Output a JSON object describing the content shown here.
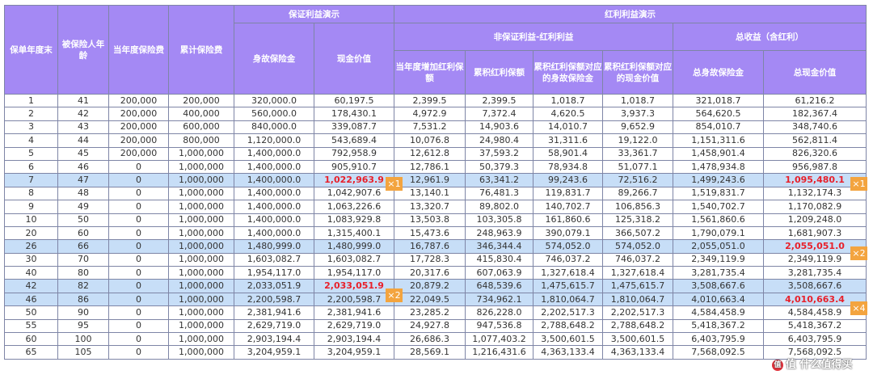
{
  "header": {
    "policy_year": "保单年度末",
    "insured_age": "被保险人年龄",
    "annual_premium": "当年度保险费",
    "cum_premium": "累计保险费",
    "guaranteed_group": "保证利益演示",
    "death_benefit": "身故保险金",
    "cash_value": "现金价值",
    "dividend_group": "红利利益演示",
    "nonguaranteed_group": "非保证利益-红利利益",
    "total_group": "总收益（含红利）",
    "bonus_added": "当年度增加红利保额",
    "cum_bonus": "累积红利保额",
    "bonus_death": "累积红利保额对应的身故保险金",
    "bonus_cash": "累积红利保额对应的现金价值",
    "total_death": "总身故保险金",
    "total_cash": "总现金价值"
  },
  "rows": [
    {
      "year": "1",
      "age": "41",
      "prem": "200,000",
      "cum": "200,000",
      "death": "320,000.0",
      "cash": "60,197.5",
      "badd": "2,399.5",
      "bcum": "2,399.5",
      "bdeath": "1,018.7",
      "bcash": "1,018.7",
      "tdeath": "321,018.7",
      "tcash": "61,216.2"
    },
    {
      "year": "2",
      "age": "42",
      "prem": "200,000",
      "cum": "400,000",
      "death": "560,000.0",
      "cash": "178,430.1",
      "badd": "4,972.9",
      "bcum": "7,372.4",
      "bdeath": "4,620.5",
      "bcash": "3,937.3",
      "tdeath": "564,620.5",
      "tcash": "182,367.4"
    },
    {
      "year": "3",
      "age": "43",
      "prem": "200,000",
      "cum": "600,000",
      "death": "840,000.0",
      "cash": "339,087.7",
      "badd": "7,531.2",
      "bcum": "14,903.6",
      "bdeath": "14,010.7",
      "bcash": "9,652.9",
      "tdeath": "854,010.7",
      "tcash": "348,740.6"
    },
    {
      "year": "4",
      "age": "44",
      "prem": "200,000",
      "cum": "800,000",
      "death": "1,120,000.0",
      "cash": "543,689.4",
      "badd": "10,076.8",
      "bcum": "24,980.4",
      "bdeath": "31,311.6",
      "bcash": "19,122.0",
      "tdeath": "1,151,311.6",
      "tcash": "562,811.4"
    },
    {
      "year": "5",
      "age": "45",
      "prem": "200,000",
      "cum": "1,000,000",
      "death": "1,400,000.0",
      "cash": "792,958.9",
      "badd": "12,612.8",
      "bcum": "37,593.2",
      "bdeath": "58,901.4",
      "bcash": "33,361.7",
      "tdeath": "1,458,901.4",
      "tcash": "826,320.6"
    },
    {
      "year": "6",
      "age": "46",
      "prem": "0",
      "cum": "1,000,000",
      "death": "1,400,000.0",
      "cash": "905,910.7",
      "badd": "12,786.1",
      "bcum": "50,379.3",
      "bdeath": "78,934.8",
      "bcash": "51,077.1",
      "tdeath": "1,478,934.8",
      "tcash": "956,987.8"
    },
    {
      "year": "7",
      "age": "47",
      "prem": "0",
      "cum": "1,000,000",
      "death": "1,400,000.0",
      "cash": "1,022,963.9",
      "badd": "12,961.9",
      "bcum": "63,341.2",
      "bdeath": "99,243.6",
      "bcash": "72,516.2",
      "tdeath": "1,499,243.6",
      "tcash": "1,095,480.1"
    },
    {
      "year": "8",
      "age": "48",
      "prem": "0",
      "cum": "1,000,000",
      "death": "1,400,000.0",
      "cash": "1,042,907.6",
      "badd": "13,140.1",
      "bcum": "76,481.3",
      "bdeath": "119,831.7",
      "bcash": "89,266.7",
      "tdeath": "1,519,831.7",
      "tcash": "1,132,174.3"
    },
    {
      "year": "9",
      "age": "49",
      "prem": "0",
      "cum": "1,000,000",
      "death": "1,400,000.0",
      "cash": "1,063,226.6",
      "badd": "13,320.7",
      "bcum": "89,802.0",
      "bdeath": "140,702.7",
      "bcash": "106,856.3",
      "tdeath": "1,540,702.7",
      "tcash": "1,170,082.9"
    },
    {
      "year": "10",
      "age": "50",
      "prem": "0",
      "cum": "1,000,000",
      "death": "1,400,000.0",
      "cash": "1,083,929.8",
      "badd": "13,503.8",
      "bcum": "103,305.8",
      "bdeath": "161,860.6",
      "bcash": "125,318.2",
      "tdeath": "1,561,860.6",
      "tcash": "1,209,248.0"
    },
    {
      "year": "20",
      "age": "60",
      "prem": "0",
      "cum": "1,000,000",
      "death": "1,400,000.0",
      "cash": "1,315,400.1",
      "badd": "15,473.6",
      "bcum": "248,963.9",
      "bdeath": "390,079.1",
      "bcash": "366,507.2",
      "tdeath": "1,790,079.1",
      "tcash": "1,681,907.3"
    },
    {
      "year": "26",
      "age": "66",
      "prem": "0",
      "cum": "1,000,000",
      "death": "1,480,999.0",
      "cash": "1,480,999.0",
      "badd": "16,787.6",
      "bcum": "346,344.4",
      "bdeath": "574,052.0",
      "bcash": "574,052.0",
      "tdeath": "2,055,051.0",
      "tcash": "2,055,051.0"
    },
    {
      "year": "30",
      "age": "70",
      "prem": "0",
      "cum": "1,000,000",
      "death": "1,603,082.7",
      "cash": "1,603,082.7",
      "badd": "17,728.3",
      "bcum": "415,830.4",
      "bdeath": "746,037.2",
      "bcash": "746,037.2",
      "tdeath": "2,349,119.9",
      "tcash": "2,349,119.9"
    },
    {
      "year": "40",
      "age": "80",
      "prem": "0",
      "cum": "1,000,000",
      "death": "1,954,117.0",
      "cash": "1,954,117.0",
      "badd": "20,317.6",
      "bcum": "607,063.9",
      "bdeath": "1,327,618.4",
      "bcash": "1,327,618.4",
      "tdeath": "3,281,735.4",
      "tcash": "3,281,735.4"
    },
    {
      "year": "42",
      "age": "82",
      "prem": "0",
      "cum": "1,000,000",
      "death": "2,033,051.9",
      "cash": "2,033,051.9",
      "badd": "20,879.2",
      "bcum": "648,539.6",
      "bdeath": "1,475,615.7",
      "bcash": "1,475,615.7",
      "tdeath": "3,508,667.6",
      "tcash": "3,508,667.6"
    },
    {
      "year": "46",
      "age": "86",
      "prem": "0",
      "cum": "1,000,000",
      "death": "2,200,598.7",
      "cash": "2,200,598.7",
      "badd": "22,049.5",
      "bcum": "734,962.1",
      "bdeath": "1,810,064.7",
      "bcash": "1,810,064.7",
      "tdeath": "4,010,663.4",
      "tcash": "4,010,663.4"
    },
    {
      "year": "50",
      "age": "90",
      "prem": "0",
      "cum": "1,000,000",
      "death": "2,381,941.6",
      "cash": "2,381,941.6",
      "badd": "23,285.2",
      "bcum": "826,228.0",
      "bdeath": "2,202,517.3",
      "bcash": "2,202,517.3",
      "tdeath": "4,584,458.9",
      "tcash": "4,584,458.9"
    },
    {
      "year": "55",
      "age": "95",
      "prem": "0",
      "cum": "1,000,000",
      "death": "2,629,719.0",
      "cash": "2,629,719.0",
      "badd": "24,927.8",
      "bcum": "947,536.8",
      "bdeath": "2,788,648.2",
      "bcash": "2,788,648.2",
      "tdeath": "5,418,367.2",
      "tcash": "5,418,367.2"
    },
    {
      "year": "60",
      "age": "100",
      "prem": "0",
      "cum": "1,000,000",
      "death": "2,903,194.4",
      "cash": "2,903,194.4",
      "badd": "26,686.3",
      "bcum": "1,077,403.2",
      "bdeath": "3,500,601.5",
      "bcash": "3,500,601.5",
      "tdeath": "6,403,795.9",
      "tcash": "6,403,795.9"
    },
    {
      "year": "65",
      "age": "105",
      "prem": "0",
      "cum": "1,000,000",
      "death": "3,204,959.1",
      "cash": "3,204,959.1",
      "badd": "28,569.1",
      "bcum": "1,216,431.6",
      "bdeath": "4,363,133.4",
      "bcash": "4,363,133.4",
      "tdeath": "7,568,092.5",
      "tcash": "7,568,092.5"
    }
  ],
  "highlighted_years": [
    "7",
    "26",
    "42",
    "46"
  ],
  "red_cells": [
    {
      "year": "7",
      "col": "cash"
    },
    {
      "year": "7",
      "col": "tcash"
    },
    {
      "year": "26",
      "col": "tcash"
    },
    {
      "year": "42",
      "col": "cash"
    },
    {
      "year": "46",
      "col": "tcash"
    }
  ],
  "badges": {
    "b1": "×1",
    "b2": "×1",
    "b3": "×2",
    "b4": "×2",
    "b5": "×4"
  },
  "watermark": "值 什么值得买",
  "colors": {
    "header": "#a489f4",
    "highlight": "#c7def7",
    "red": "#e8202a",
    "badge": "#f3a43f"
  }
}
